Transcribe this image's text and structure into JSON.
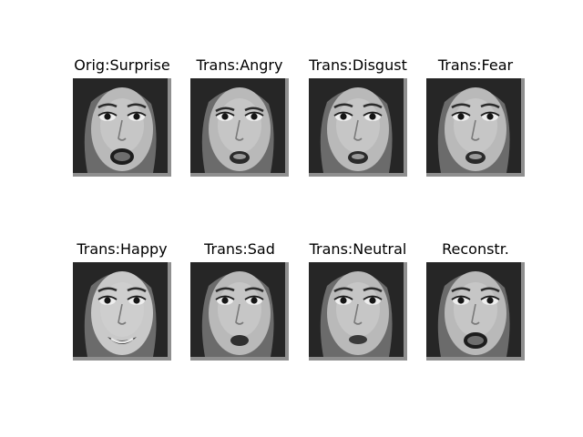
{
  "figure": {
    "panels": [
      {
        "title": "Orig:Surprise",
        "expression": "surprise",
        "subject": "grayscale face"
      },
      {
        "title": "Trans:Angry",
        "expression": "angry",
        "subject": "grayscale face"
      },
      {
        "title": "Trans:Disgust",
        "expression": "disgust",
        "subject": "grayscale face"
      },
      {
        "title": "Trans:Fear",
        "expression": "fear",
        "subject": "grayscale face"
      },
      {
        "title": "Trans:Happy",
        "expression": "happy",
        "subject": "grayscale face"
      },
      {
        "title": "Trans:Sad",
        "expression": "sad",
        "subject": "grayscale face"
      },
      {
        "title": "Trans:Neutral",
        "expression": "neutral",
        "subject": "grayscale face"
      },
      {
        "title": "Reconstr.",
        "expression": "surprise",
        "subject": "grayscale face"
      }
    ]
  }
}
